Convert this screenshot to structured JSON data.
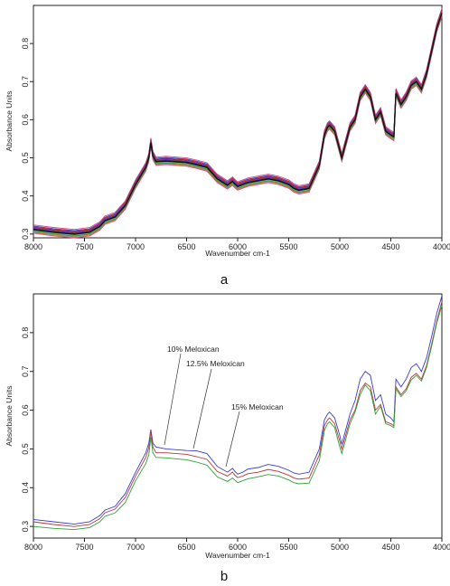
{
  "chart_data": [
    {
      "type": "line",
      "panel_label": "a",
      "xlabel": "Wavenumber cm-1",
      "ylabel": "Absorbance Units",
      "xlim": [
        8000,
        4000
      ],
      "ylim": [
        0.29,
        0.9
      ],
      "x_ticks": [
        "8000",
        "7500",
        "7000",
        "6500",
        "6000",
        "5500",
        "5000",
        "4500",
        "4000"
      ],
      "y_ticks": [
        "0.3",
        "0.4",
        "0.5",
        "0.6",
        "0.7",
        "0.8"
      ],
      "grid": false,
      "series_colors": [
        "#d4478a",
        "#3b3bd0",
        "#222222",
        "#d03030",
        "#2f9f3a",
        "#8a3fbf",
        "#23a3a3",
        "#c8b23a",
        "#5a7bd8",
        "#e07a2a"
      ],
      "x": [
        8000,
        7800,
        7600,
        7450,
        7350,
        7300,
        7200,
        7100,
        7000,
        6900,
        6870,
        6850,
        6830,
        6800,
        6700,
        6500,
        6400,
        6300,
        6200,
        6100,
        6050,
        6030,
        6000,
        5950,
        5900,
        5800,
        5700,
        5600,
        5500,
        5450,
        5400,
        5300,
        5200,
        5150,
        5120,
        5100,
        5050,
        5000,
        4980,
        4900,
        4850,
        4800,
        4750,
        4700,
        4650,
        4600,
        4550,
        4500,
        4470,
        4450,
        4400,
        4350,
        4300,
        4250,
        4200,
        4150,
        4100,
        4050,
        4000
      ],
      "series": [
        {
          "values": [
            0.312,
            0.305,
            0.3,
            0.305,
            0.32,
            0.335,
            0.345,
            0.375,
            0.43,
            0.475,
            0.5,
            0.54,
            0.505,
            0.49,
            0.492,
            0.488,
            0.482,
            0.475,
            0.445,
            0.428,
            0.438,
            0.432,
            0.425,
            0.43,
            0.435,
            0.44,
            0.445,
            0.44,
            0.43,
            0.42,
            0.415,
            0.42,
            0.48,
            0.56,
            0.58,
            0.585,
            0.57,
            0.52,
            0.5,
            0.58,
            0.6,
            0.66,
            0.68,
            0.66,
            0.6,
            0.62,
            0.57,
            0.56,
            0.555,
            0.67,
            0.64,
            0.66,
            0.69,
            0.7,
            0.68,
            0.72,
            0.78,
            0.84,
            0.88
          ]
        }
      ]
    },
    {
      "type": "line",
      "panel_label": "b",
      "xlabel": "Wavenumber cm-1",
      "ylabel": "Absorbance Units",
      "xlim": [
        8000,
        4000
      ],
      "ylim": [
        0.27,
        0.9
      ],
      "x_ticks": [
        "8000",
        "7500",
        "7000",
        "6500",
        "6000",
        "5500",
        "5000",
        "4500",
        "4000"
      ],
      "y_ticks": [
        "0.3",
        "0.4",
        "0.5",
        "0.6",
        "0.7",
        "0.8"
      ],
      "grid": false,
      "x": [
        8000,
        7800,
        7600,
        7450,
        7350,
        7300,
        7200,
        7100,
        7000,
        6900,
        6870,
        6850,
        6830,
        6800,
        6700,
        6500,
        6400,
        6300,
        6200,
        6100,
        6050,
        6030,
        6000,
        5950,
        5900,
        5800,
        5700,
        5600,
        5500,
        5450,
        5400,
        5300,
        5200,
        5150,
        5120,
        5100,
        5050,
        5000,
        4980,
        4900,
        4850,
        4800,
        4750,
        4700,
        4650,
        4600,
        4550,
        4500,
        4470,
        4450,
        4400,
        4350,
        4300,
        4250,
        4200,
        4150,
        4100,
        4050,
        4000
      ],
      "series": [
        {
          "name": "10% Meloxican",
          "color": "#3b3bd0",
          "values": [
            0.318,
            0.312,
            0.306,
            0.312,
            0.328,
            0.342,
            0.352,
            0.385,
            0.44,
            0.49,
            0.515,
            0.55,
            0.515,
            0.505,
            0.5,
            0.496,
            0.495,
            0.488,
            0.455,
            0.44,
            0.45,
            0.443,
            0.435,
            0.44,
            0.448,
            0.452,
            0.46,
            0.455,
            0.445,
            0.438,
            0.435,
            0.44,
            0.5,
            0.575,
            0.59,
            0.595,
            0.58,
            0.535,
            0.512,
            0.59,
            0.625,
            0.68,
            0.7,
            0.69,
            0.625,
            0.64,
            0.59,
            0.58,
            0.57,
            0.68,
            0.66,
            0.68,
            0.71,
            0.72,
            0.7,
            0.735,
            0.79,
            0.85,
            0.895
          ]
        },
        {
          "name": "12.5% Meloxican",
          "color": "#b03a3a",
          "values": [
            0.312,
            0.305,
            0.3,
            0.305,
            0.32,
            0.335,
            0.345,
            0.375,
            0.43,
            0.478,
            0.503,
            0.545,
            0.505,
            0.49,
            0.49,
            0.486,
            0.48,
            0.473,
            0.442,
            0.43,
            0.44,
            0.433,
            0.426,
            0.43,
            0.436,
            0.44,
            0.447,
            0.442,
            0.432,
            0.425,
            0.422,
            0.425,
            0.485,
            0.56,
            0.575,
            0.58,
            0.565,
            0.52,
            0.5,
            0.575,
            0.6,
            0.65,
            0.67,
            0.66,
            0.6,
            0.615,
            0.57,
            0.565,
            0.56,
            0.66,
            0.64,
            0.655,
            0.685,
            0.695,
            0.68,
            0.715,
            0.77,
            0.83,
            0.88
          ]
        },
        {
          "name": "15% Meloxican",
          "color": "#2f9f3a",
          "values": [
            0.3,
            0.295,
            0.292,
            0.297,
            0.312,
            0.326,
            0.335,
            0.362,
            0.418,
            0.462,
            0.485,
            0.53,
            0.49,
            0.478,
            0.477,
            0.472,
            0.466,
            0.458,
            0.428,
            0.416,
            0.425,
            0.42,
            0.413,
            0.418,
            0.423,
            0.428,
            0.434,
            0.43,
            0.42,
            0.413,
            0.41,
            0.412,
            0.47,
            0.548,
            0.565,
            0.57,
            0.555,
            0.505,
            0.488,
            0.565,
            0.595,
            0.64,
            0.665,
            0.65,
            0.59,
            0.61,
            0.565,
            0.56,
            0.555,
            0.655,
            0.635,
            0.65,
            0.678,
            0.69,
            0.675,
            0.71,
            0.765,
            0.825,
            0.87
          ]
        }
      ],
      "annotations": [
        "10% Meloxican",
        "12.5% Meloxican",
        "15% Meloxican"
      ]
    }
  ]
}
